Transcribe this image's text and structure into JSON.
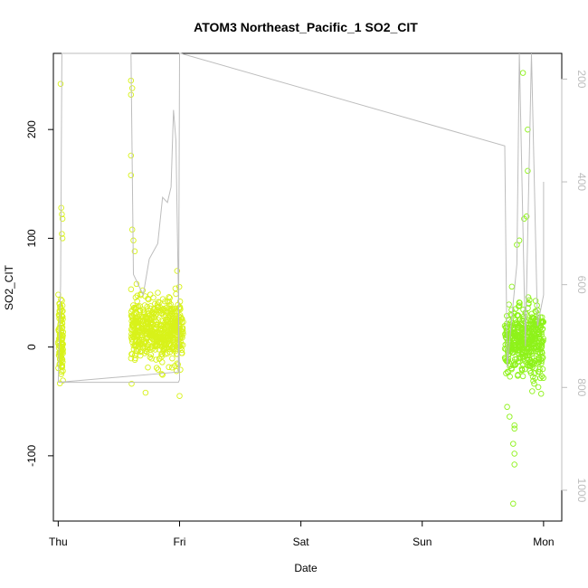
{
  "chart_data": {
    "type": "scatter",
    "title": "ATOM3 Northeast_Pacific_1 SO2_CIT",
    "xlabel": "Date",
    "ylabel": "SO2_CIT",
    "x_ticks": [
      "Thu",
      "Fri",
      "Sat",
      "Sun",
      "Mon"
    ],
    "y_ticks": [
      -100,
      0,
      100,
      200
    ],
    "y_right_ticks": [
      200,
      400,
      600,
      800,
      1000
    ],
    "y_right_reversed": true,
    "ylim": [
      -160,
      270
    ],
    "y_right_lim": [
      1060,
      150
    ],
    "xlim": [
      -0.04,
      4.15
    ],
    "grid": false,
    "colors": {
      "points_early": "#d8f21a",
      "points_late": "#8ef21a",
      "pressure_line": "#bdbdbd"
    },
    "series": [
      {
        "kind": "points",
        "color_key": "points_early",
        "clusters": [
          {
            "x_start": 0.0,
            "x_end": 0.04,
            "y_center": 10,
            "y_spread": 18,
            "spikes": [
              [
                0.02,
                242
              ],
              [
                0.025,
                128
              ],
              [
                0.03,
                122
              ],
              [
                0.035,
                118
              ],
              [
                0.03,
                104
              ],
              [
                0.035,
                100
              ],
              [
                0.025,
                -25
              ]
            ]
          },
          {
            "x_start": 0.6,
            "x_end": 1.03,
            "y_center": 15,
            "y_spread": 14,
            "spikes": [
              [
                0.6,
                245
              ],
              [
                0.61,
                238
              ],
              [
                0.6,
                232
              ],
              [
                0.6,
                176
              ],
              [
                0.6,
                158
              ],
              [
                0.61,
                108
              ],
              [
                0.62,
                98
              ],
              [
                0.63,
                88
              ],
              [
                0.72,
                -42
              ],
              [
                0.98,
                70
              ],
              [
                1.0,
                -45
              ]
            ]
          }
        ]
      },
      {
        "kind": "points",
        "color_key": "points_late",
        "clusters": [
          {
            "x_start": 3.68,
            "x_end": 4.0,
            "y_center": 5,
            "y_spread": 16,
            "spikes": [
              [
                3.7,
                -55
              ],
              [
                3.72,
                -64
              ],
              [
                3.76,
                -72
              ],
              [
                3.76,
                -75
              ],
              [
                3.75,
                -89
              ],
              [
                3.76,
                -98
              ],
              [
                3.76,
                -108
              ],
              [
                3.75,
                -144
              ],
              [
                3.83,
                252
              ],
              [
                3.87,
                200
              ],
              [
                3.87,
                162
              ],
              [
                3.86,
                120
              ],
              [
                3.84,
                118
              ],
              [
                3.8,
                98
              ],
              [
                3.78,
                94
              ],
              [
                3.98,
                -43
              ]
            ]
          }
        ]
      },
      {
        "kind": "line",
        "color_key": "pressure_line",
        "axis": "right",
        "points": [
          [
            0.0,
            790
          ],
          [
            0.02,
            600
          ],
          [
            0.03,
            150
          ],
          [
            0.6,
            150
          ],
          [
            0.62,
            580
          ],
          [
            0.7,
            620
          ],
          [
            0.75,
            550
          ],
          [
            0.82,
            520
          ],
          [
            0.86,
            430
          ],
          [
            0.9,
            440
          ],
          [
            0.93,
            410
          ],
          [
            0.95,
            260
          ],
          [
            0.97,
            320
          ],
          [
            0.99,
            620
          ],
          [
            1.0,
            785
          ],
          [
            0.99,
            790
          ],
          [
            0.0,
            790
          ],
          [
            0.99,
            770
          ],
          [
            1.0,
            150
          ],
          [
            1.01,
            150
          ],
          [
            3.68,
            330
          ],
          [
            3.7,
            760
          ],
          [
            3.78,
            560
          ],
          [
            3.8,
            150
          ],
          [
            3.85,
            720
          ],
          [
            3.9,
            150
          ],
          [
            3.95,
            680
          ],
          [
            4.0,
            620
          ],
          [
            4.0,
            400
          ],
          [
            4.0,
            560
          ]
        ]
      }
    ]
  }
}
